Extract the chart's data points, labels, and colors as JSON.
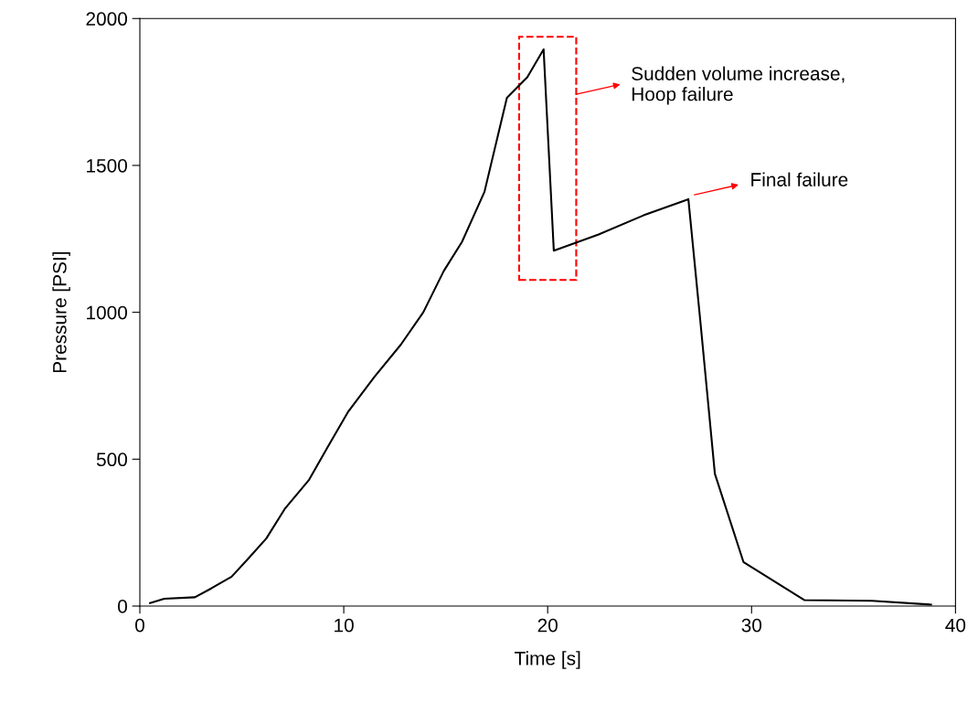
{
  "chart_data": {
    "type": "line",
    "xlabel": "Time [s]",
    "ylabel": "Pressure [PSI]",
    "xlim": [
      0,
      40
    ],
    "ylim": [
      0,
      2000
    ],
    "xticks": [
      0,
      10,
      20,
      30,
      40
    ],
    "yticks": [
      0,
      500,
      1000,
      1500,
      2000
    ],
    "grid": false,
    "marker": "none",
    "line_style": "solid",
    "series": [
      {
        "color": "#000000",
        "x": [
          0.5,
          1.2,
          2.7,
          3.5,
          4.5,
          5.3,
          6.2,
          7.1,
          8.3,
          9.2,
          10.2,
          11.5,
          12.8,
          13.9,
          14.9,
          15.8,
          16.9,
          18.0,
          19.0,
          19.8,
          20.3,
          22.5,
          24.7,
          26.9,
          27.5,
          28.2,
          29.6,
          32.6,
          35.9,
          38.8
        ],
        "values": [
          10,
          25,
          30,
          60,
          100,
          160,
          230,
          330,
          430,
          540,
          660,
          780,
          890,
          1000,
          1140,
          1240,
          1410,
          1730,
          1800,
          1895,
          1210,
          1265,
          1330,
          1385,
          960,
          450,
          150,
          20,
          18,
          5
        ]
      }
    ],
    "annotations": [
      "Sudden volume increase,\nHoop failure",
      "Final failure"
    ]
  }
}
